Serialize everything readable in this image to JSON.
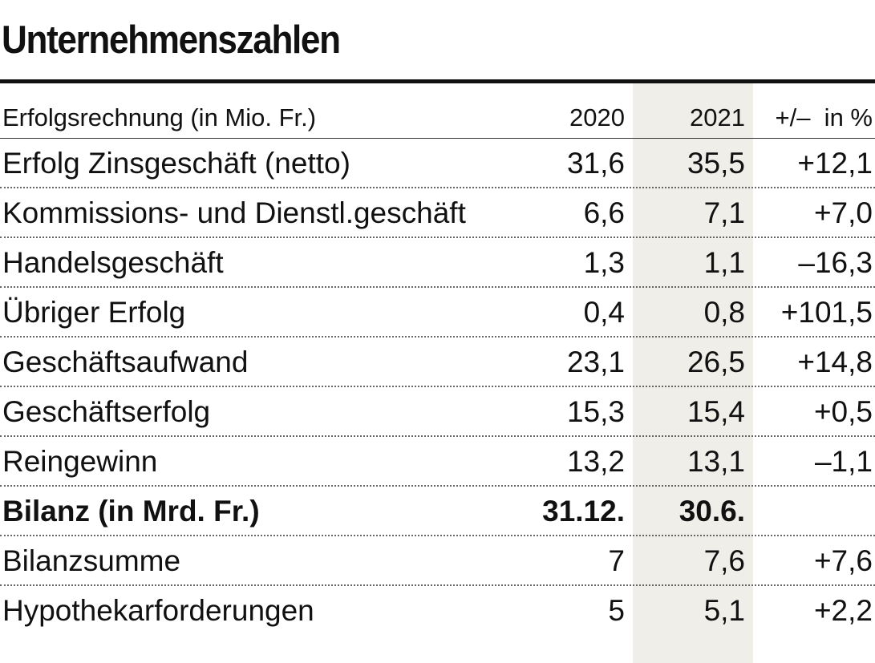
{
  "header": {
    "title": "Unternehmenszahlen"
  },
  "table": {
    "columns": [
      "Erfolgsrechnung (in Mio. Fr.)",
      "2020",
      "2021",
      "+/–  in %"
    ],
    "rows": [
      [
        "Erfolg Zinsgeschäft (netto)",
        "31,6",
        "35,5",
        "+12,1"
      ],
      [
        "Kommissions- und Dienstl.geschäft",
        "6,6",
        "7,1",
        "+7,0"
      ],
      [
        "Handelsgeschäft",
        "1,3",
        "1,1",
        "–16,3"
      ],
      [
        "Übriger Erfolg",
        "0,4",
        "0,8",
        "+101,5"
      ],
      [
        "Geschäftsaufwand",
        "23,1",
        "26,5",
        "+14,8"
      ],
      [
        "Geschäftserfolg",
        "15,3",
        "15,4",
        "+0,5"
      ],
      [
        "Reingewinn",
        "13,2",
        "13,1",
        "–1,1"
      ]
    ],
    "section": {
      "columns": [
        "Bilanz (in Mrd. Fr.)",
        "31.12.",
        "30.6."
      ],
      "rows": [
        [
          "Bilanzsumme",
          "7",
          "7,6",
          "+7,6"
        ],
        [
          "Hypothekarforderungen",
          "5",
          "5,1",
          "+2,2"
        ]
      ]
    }
  }
}
